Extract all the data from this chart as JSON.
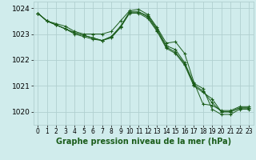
{
  "background_color": "#d0ecec",
  "grid_color": "#b0d0d0",
  "line_color": "#1a5c1a",
  "marker_color": "#1a5c1a",
  "xlabel": "Graphe pression niveau de la mer (hPa)",
  "xlabel_fontsize": 7.0,
  "ytick_fontsize": 6.5,
  "xtick_fontsize": 5.5,
  "yticks": [
    1020,
    1021,
    1022,
    1023,
    1024
  ],
  "xticks": [
    0,
    1,
    2,
    3,
    4,
    5,
    6,
    7,
    8,
    9,
    10,
    11,
    12,
    13,
    14,
    15,
    16,
    17,
    18,
    19,
    20,
    21,
    22,
    23
  ],
  "xlim": [
    -0.5,
    23.5
  ],
  "ylim": [
    1019.5,
    1024.25
  ],
  "series": [
    [
      1023.8,
      1023.5,
      1023.35,
      1023.2,
      1023.0,
      1022.9,
      1022.8,
      1022.75,
      1022.85,
      1023.25,
      1023.85,
      1023.85,
      1023.7,
      1023.2,
      1022.55,
      1022.4,
      1021.9,
      1021.1,
      1020.9,
      1020.1,
      1019.9,
      1019.9,
      1020.1,
      1020.1
    ],
    [
      1023.8,
      1023.5,
      1023.35,
      1023.2,
      1023.05,
      1022.95,
      1022.85,
      1022.75,
      1022.9,
      1023.3,
      1023.85,
      1023.85,
      1023.65,
      1023.15,
      1022.5,
      1022.3,
      1021.85,
      1021.05,
      1020.8,
      1020.35,
      1020.0,
      1020.0,
      1020.15,
      1020.15
    ],
    [
      1023.8,
      1023.5,
      1023.35,
      1023.2,
      1023.05,
      1022.95,
      1022.85,
      1022.75,
      1022.9,
      1023.25,
      1023.8,
      1023.8,
      1023.6,
      1023.1,
      1022.45,
      1022.25,
      1021.8,
      1021.0,
      1020.75,
      1020.5,
      1020.0,
      1020.0,
      1020.15,
      1020.15
    ],
    [
      1023.8,
      1023.5,
      1023.4,
      1023.3,
      1023.1,
      1023.0,
      1023.0,
      1023.0,
      1023.1,
      1023.5,
      1023.9,
      1023.95,
      1023.75,
      1023.25,
      1022.65,
      1022.7,
      1022.25,
      1021.15,
      1020.3,
      1020.25,
      1020.05,
      1020.05,
      1020.2,
      1020.2
    ]
  ]
}
